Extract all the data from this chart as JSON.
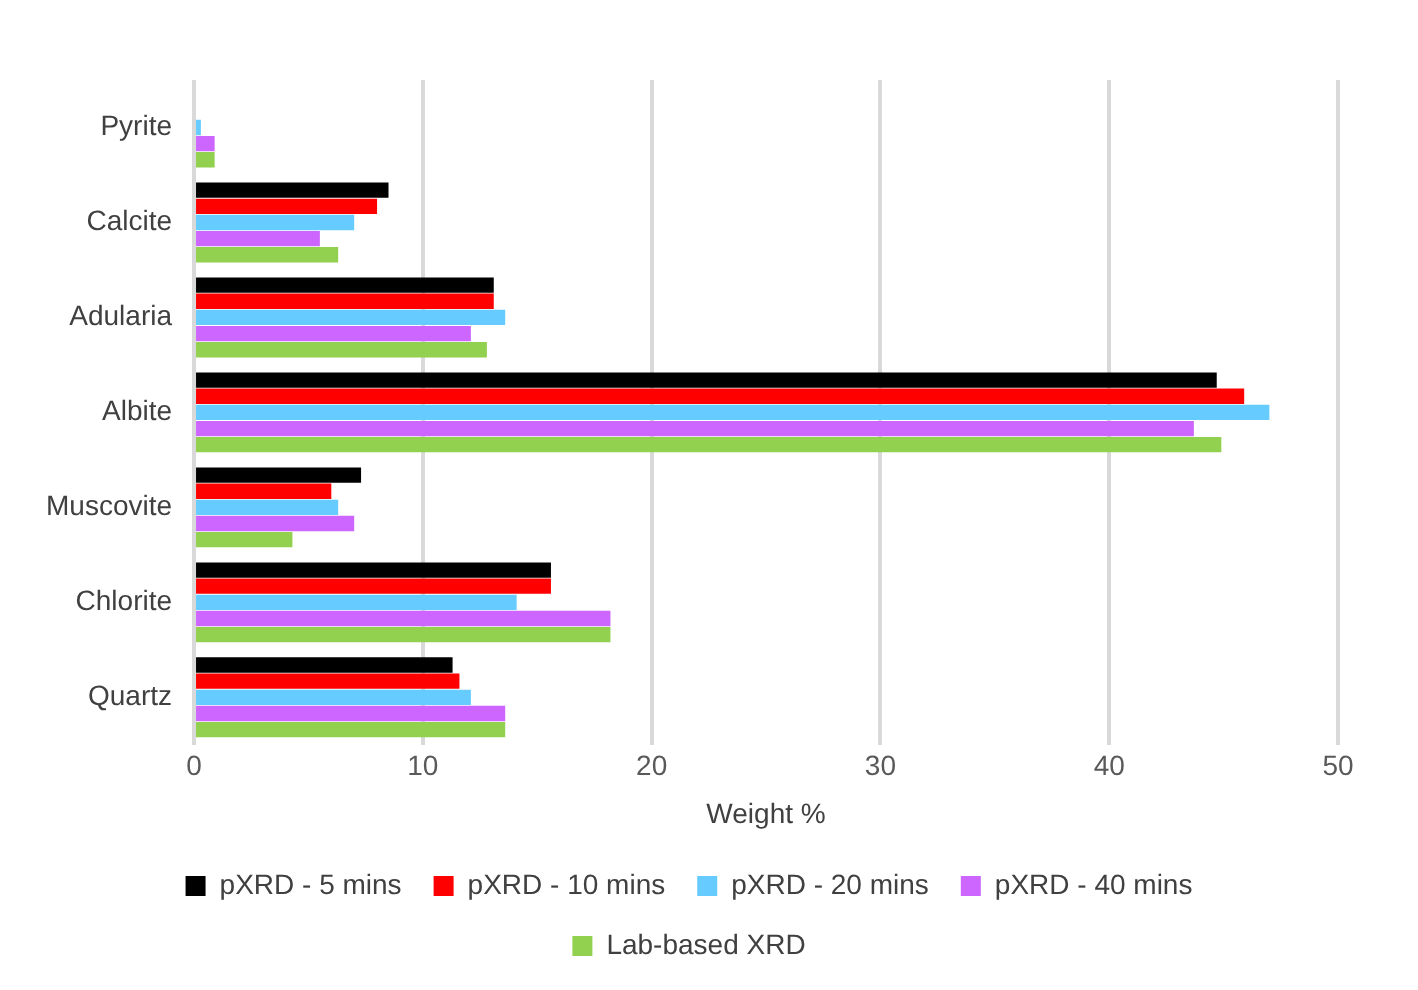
{
  "chart_data": {
    "type": "bar",
    "orientation": "horizontal",
    "xlabel": "Weight %",
    "categories": [
      "Pyrite",
      "Calcite",
      "Adularia",
      "Albite",
      "Muscovite",
      "Chlorite",
      "Quartz"
    ],
    "series": [
      {
        "name": "pXRD - 5 mins",
        "color": "#000000",
        "values": [
          0,
          8.5,
          13.1,
          44.7,
          7.3,
          15.6,
          11.3
        ]
      },
      {
        "name": "pXRD - 10 mins",
        "color": "#ff0000",
        "values": [
          0,
          8.0,
          13.1,
          45.9,
          6.0,
          15.6,
          11.6
        ]
      },
      {
        "name": "pXRD - 20 mins",
        "color": "#66ccff",
        "values": [
          0.3,
          7.0,
          13.6,
          47.0,
          6.3,
          14.1,
          12.1
        ]
      },
      {
        "name": "pXRD - 40 mins",
        "color": "#cc66ff",
        "values": [
          0.9,
          5.5,
          12.1,
          43.7,
          7.0,
          18.2,
          13.6
        ]
      },
      {
        "name": "Lab-based XRD",
        "color": "#92d050",
        "values": [
          0.9,
          6.3,
          12.8,
          44.9,
          4.3,
          18.2,
          13.6
        ]
      }
    ],
    "xlim": [
      0,
      50
    ],
    "xticks": [
      0,
      10,
      20,
      30,
      40,
      50
    ],
    "grid": "x",
    "legend": "bottom"
  }
}
